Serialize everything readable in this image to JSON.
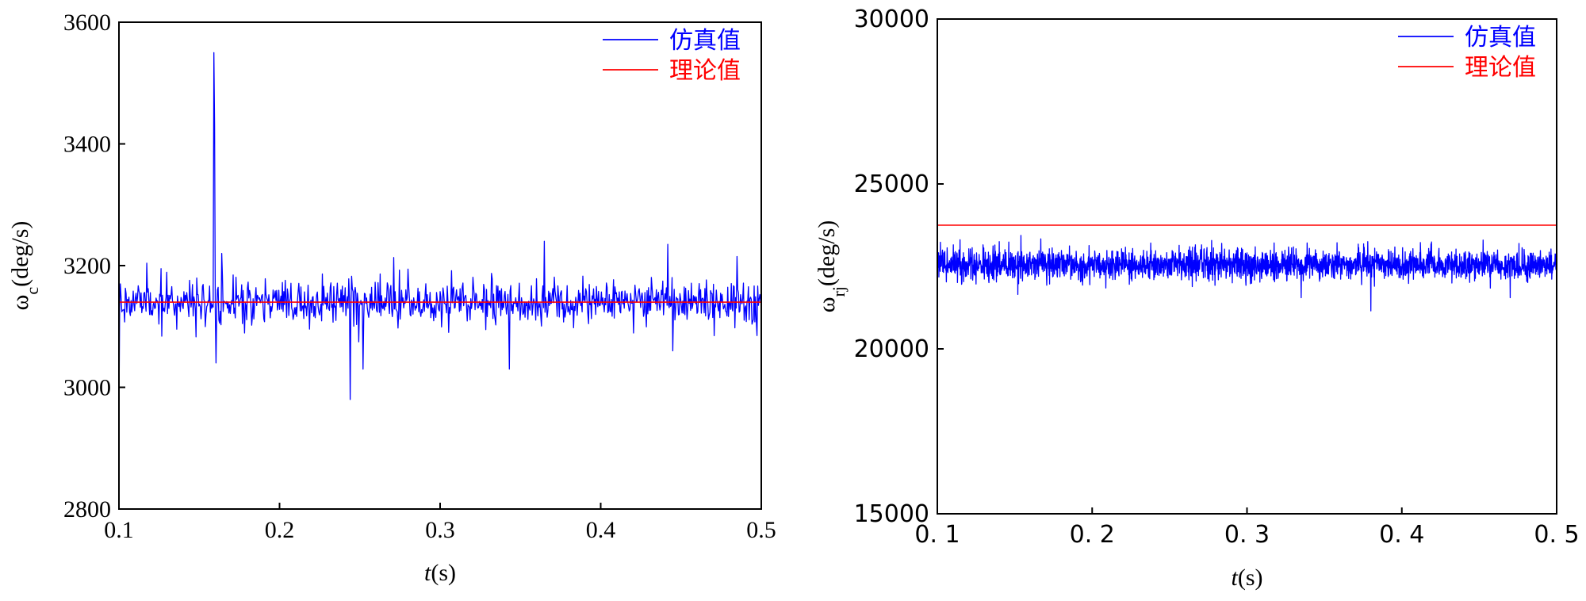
{
  "chart_data": [
    {
      "type": "line",
      "xlabel": "t(s)",
      "ylabel": "ωc(deg/s)",
      "xlim": [
        0.1,
        0.5
      ],
      "ylim": [
        2800,
        3600
      ],
      "xticks": [
        "0.1",
        "0.2",
        "0.3",
        "0.4",
        "0.5"
      ],
      "yticks": [
        "2800",
        "3000",
        "3200",
        "3400",
        "3600"
      ],
      "legend_position": "top-right",
      "grid": false,
      "series": [
        {
          "name": "仿真值",
          "color": "#0000ff",
          "style": "noisy",
          "mean": 3140,
          "noise": 18,
          "points": 900,
          "spikes": [
            {
              "x": 0.1,
              "y": 2960
            },
            {
              "x": 0.101,
              "y": 3170
            },
            {
              "x": 0.159,
              "y": 3550
            },
            {
              "x": 0.1595,
              "y": 3430
            },
            {
              "x": 0.1605,
              "y": 3040
            },
            {
              "x": 0.164,
              "y": 3220
            },
            {
              "x": 0.244,
              "y": 2980
            },
            {
              "x": 0.252,
              "y": 3030
            },
            {
              "x": 0.343,
              "y": 3030
            },
            {
              "x": 0.365,
              "y": 3240
            },
            {
              "x": 0.442,
              "y": 3235
            },
            {
              "x": 0.445,
              "y": 3060
            },
            {
              "x": 0.485,
              "y": 3215
            }
          ]
        },
        {
          "name": "理论值",
          "color": "#ff0000",
          "style": "constant",
          "value": 3140
        }
      ]
    },
    {
      "type": "line",
      "xlabel": "t(s)",
      "ylabel": "ωrj(deg/s)",
      "xlim": [
        0.1,
        0.5
      ],
      "ylim": [
        15000,
        30000
      ],
      "xticks": [
        "0. 1",
        "0. 2",
        "0. 3",
        "0. 4",
        "0. 5"
      ],
      "yticks": [
        "15000",
        "20000",
        "25000",
        "30000"
      ],
      "legend_position": "top-right",
      "grid": false,
      "series": [
        {
          "name": "仿真值",
          "color": "#0000ff",
          "style": "noisy",
          "mean": 22550,
          "noise": 230,
          "points": 2400,
          "spikes": [
            {
              "x": 0.14,
              "y": 23250
            },
            {
              "x": 0.152,
              "y": 21650
            },
            {
              "x": 0.335,
              "y": 21550
            },
            {
              "x": 0.378,
              "y": 23250
            },
            {
              "x": 0.38,
              "y": 21150
            },
            {
              "x": 0.47,
              "y": 21550
            }
          ]
        },
        {
          "name": "理论值",
          "color": "#ff0000",
          "style": "constant",
          "value": 23750
        }
      ]
    }
  ]
}
